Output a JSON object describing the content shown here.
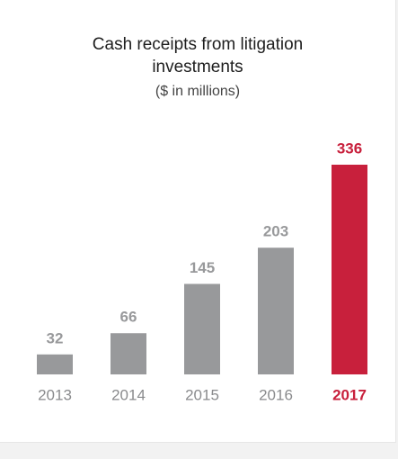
{
  "chart_data": {
    "type": "bar",
    "title": "Cash receipts from litigation investments",
    "subtitle": "($ in millions)",
    "categories": [
      "2013",
      "2014",
      "2015",
      "2016",
      "2017"
    ],
    "values": [
      32,
      66,
      145,
      203,
      336
    ],
    "colors": [
      "#98999b",
      "#98999b",
      "#98999b",
      "#98999b",
      "#c8203c"
    ]
  }
}
